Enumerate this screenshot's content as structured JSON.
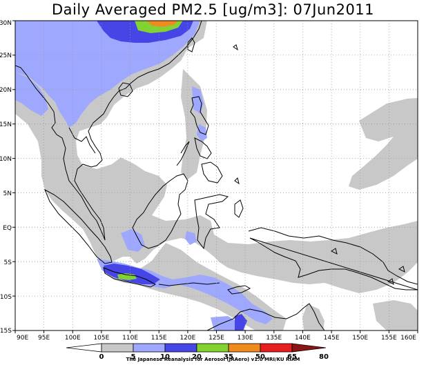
{
  "title": "Daily Averaged PM2.5 [ug/m3]: 07Jun2011",
  "credit": "The Japanese Reanalysis for Aerosol (JRAero) v1.0 MRI/KU RIAM",
  "map": {
    "lon_range": [
      90,
      160
    ],
    "lat_range": [
      -15,
      30
    ],
    "lon_ticks": [
      {
        "value": 90,
        "label": "90E"
      },
      {
        "value": 95,
        "label": "95E"
      },
      {
        "value": 100,
        "label": "100E"
      },
      {
        "value": 105,
        "label": "105E"
      },
      {
        "value": 110,
        "label": "110E"
      },
      {
        "value": 115,
        "label": "115E"
      },
      {
        "value": 120,
        "label": "120E"
      },
      {
        "value": 125,
        "label": "125E"
      },
      {
        "value": 130,
        "label": "130E"
      },
      {
        "value": 135,
        "label": "135E"
      },
      {
        "value": 140,
        "label": "140E"
      },
      {
        "value": 145,
        "label": "145E"
      },
      {
        "value": 150,
        "label": "150E"
      },
      {
        "value": 155,
        "label": "155E"
      },
      {
        "value": 160,
        "label": "160E"
      }
    ],
    "lat_ticks": [
      {
        "value": 30,
        "label": "30N"
      },
      {
        "value": 25,
        "label": "25N"
      },
      {
        "value": 20,
        "label": "20N"
      },
      {
        "value": 15,
        "label": "15N"
      },
      {
        "value": 10,
        "label": "10N"
      },
      {
        "value": 5,
        "label": "5N"
      },
      {
        "value": 0,
        "label": "EQ"
      },
      {
        "value": -5,
        "label": "5S"
      },
      {
        "value": -10,
        "label": "10S"
      },
      {
        "value": -15,
        "label": "15S"
      }
    ],
    "colors": {
      "c5_10": "#c8c8c8",
      "c10_20": "#9ea8ff",
      "c20_35": "#4646e6",
      "c35_50": "#82d232",
      "c50_65": "#f08c1e",
      "c65_80": "#e61e1e",
      "c80": "#8c1414",
      "coast": "#000000",
      "grid": "#9a9a9a"
    }
  },
  "colorbar": {
    "labels": [
      "0",
      "5",
      "10",
      "20",
      "35",
      "50",
      "65",
      "80"
    ],
    "colors": [
      "#ffffff",
      "#c8c8c8",
      "#9ea8ff",
      "#4646e6",
      "#82d232",
      "#f08c1e",
      "#e61e1e",
      "#8c1414"
    ]
  }
}
